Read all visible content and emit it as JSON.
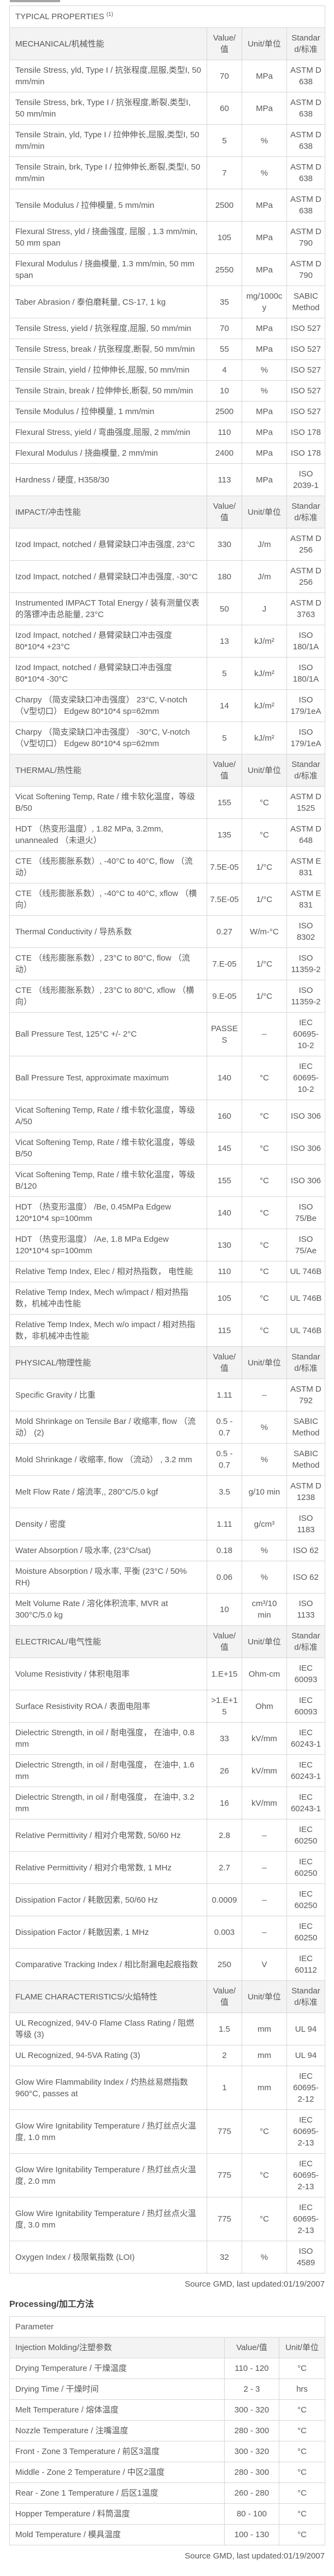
{
  "source_note": "Source GMD, last updated:01/19/2007",
  "typical": {
    "title": "TYPICAL PROPERTIES",
    "title_sup": "(1)",
    "columns": {
      "value": "Value/值",
      "unit": "Unit/单位",
      "standard": "Standard/标准"
    },
    "sections": [
      {
        "name": "MECHANICAL/机械性能",
        "rows": [
          {
            "property": "Tensile Stress, yld, Type I / 抗张程度,屈服,类型I, 50 mm/min",
            "value": "70",
            "unit": "MPa",
            "standard": "ASTM D 638"
          },
          {
            "property": "Tensile Stress, brk, Type I / 抗张程度,断裂,类型I, 50 mm/min",
            "value": "60",
            "unit": "MPa",
            "standard": "ASTM D 638"
          },
          {
            "property": "Tensile Strain, yld, Type I / 拉伸伸长,屈服,类型I, 50 mm/min",
            "value": "5",
            "unit": "%",
            "standard": "ASTM D 638"
          },
          {
            "property": "Tensile Strain, brk, Type I / 拉伸伸长,断裂,类型I, 50 mm/min",
            "value": "7",
            "unit": "%",
            "standard": "ASTM D 638"
          },
          {
            "property": "Tensile Modulus / 拉伸模量, 5 mm/min",
            "value": "2500",
            "unit": "MPa",
            "standard": "ASTM D 638"
          },
          {
            "property": "Flexural Stress, yld / 挠曲强度, 屈服 , 1.3 mm/min, 50 mm span",
            "value": "105",
            "unit": "MPa",
            "standard": "ASTM D 790"
          },
          {
            "property": "Flexural Modulus / 挠曲模量, 1.3 mm/min, 50 mm span",
            "value": "2550",
            "unit": "MPa",
            "standard": "ASTM D 790"
          },
          {
            "property": "Taber Abrasion / 泰伯磨耗量, CS-17, 1 kg",
            "value": "35",
            "unit": "mg/1000cy",
            "standard": "SABIC Method"
          },
          {
            "property": "Tensile Stress, yield / 抗张程度,屈服, 50 mm/min",
            "value": "70",
            "unit": "MPa",
            "standard": "ISO 527"
          },
          {
            "property": "Tensile Stress, break / 抗张程度,断裂, 50 mm/min",
            "value": "55",
            "unit": "MPa",
            "standard": "ISO 527"
          },
          {
            "property": "Tensile Strain, yield / 拉伸伸长,屈服, 50 mm/min",
            "value": "4",
            "unit": "%",
            "standard": "ISO 527"
          },
          {
            "property": "Tensile Strain, break / 拉伸伸长,断裂, 50 mm/min",
            "value": "10",
            "unit": "%",
            "standard": "ISO 527"
          },
          {
            "property": "Tensile Modulus / 拉伸模量, 1 mm/min",
            "value": "2500",
            "unit": "MPa",
            "standard": "ISO 527"
          },
          {
            "property": "Flexural Stress, yield / 弯曲强度,屈服, 2 mm/min",
            "value": "110",
            "unit": "MPa",
            "standard": "ISO 178"
          },
          {
            "property": "Flexural Modulus / 挠曲模量, 2 mm/min",
            "value": "2400",
            "unit": "MPa",
            "standard": "ISO 178"
          },
          {
            "property": "Hardness / 硬度, H358/30",
            "value": "113",
            "unit": "MPa",
            "standard": "ISO 2039-1"
          }
        ]
      },
      {
        "name": "IMPACT/冲击性能",
        "rows": [
          {
            "property": "Izod Impact, notched / 悬臂梁缺口冲击强度, 23°C",
            "value": "330",
            "unit": "J/m",
            "standard": "ASTM D 256"
          },
          {
            "property": "Izod Impact, notched / 悬臂梁缺口冲击强度, -30°C",
            "value": "180",
            "unit": "J/m",
            "standard": "ASTM D 256"
          },
          {
            "property": "Instrumented IMPACT Total Energy / 装有测量仪表的落镖冲击总能量, 23°C",
            "value": "50",
            "unit": "J",
            "standard": "ASTM D 3763"
          },
          {
            "property": "Izod Impact, notched / 悬臂梁缺口冲击强度 80*10*4 +23°C",
            "value": "13",
            "unit": "kJ/m²",
            "standard": "ISO 180/1A"
          },
          {
            "property": "Izod Impact, notched / 悬臂梁缺口冲击强度 80*10*4 -30°C",
            "value": "5",
            "unit": "kJ/m²",
            "standard": "ISO 180/1A"
          },
          {
            "property": "Charpy （简支梁缺口冲击强度） 23°C, V-notch （V型切口） Edgew 80*10*4 sp=62mm",
            "value": "14",
            "unit": "kJ/m²",
            "standard": "ISO 179/1eA"
          },
          {
            "property": "Charpy （简支梁缺口冲击强度） -30°C, V-notch （V型切口） Edgew 80*10*4 sp=62mm",
            "value": "5",
            "unit": "kJ/m²",
            "standard": "ISO 179/1eA"
          }
        ]
      },
      {
        "name": "THERMAL/热性能",
        "rows": [
          {
            "property": "Vicat Softening Temp, Rate / 维卡软化温度，等级 B/50",
            "value": "155",
            "unit": "°C",
            "standard": "ASTM D 1525"
          },
          {
            "property": "HDT （热变形温度）, 1.82 MPa, 3.2mm, unannealed （未退火）",
            "value": "135",
            "unit": "°C",
            "standard": "ASTM D 648"
          },
          {
            "property": "CTE （线形膨胀系数）, -40°C to 40°C, flow （流动）",
            "value": "7.5E-05",
            "unit": "1/°C",
            "standard": "ASTM E 831"
          },
          {
            "property": "CTE （线形膨胀系数）, -40°C to 40°C, xflow （横向）",
            "value": "7.5E-05",
            "unit": "1/°C",
            "standard": "ASTM E 831"
          },
          {
            "property": "Thermal Conductivity / 导热系数",
            "value": "0.27",
            "unit": "W/m-°C",
            "standard": "ISO 8302"
          },
          {
            "property": "CTE （线形膨胀系数）, 23°C to 80°C, flow （流动）",
            "value": "7.E-05",
            "unit": "1/°C",
            "standard": "ISO 11359-2"
          },
          {
            "property": "CTE （线形膨胀系数）, 23°C to 80°C, xflow （横向）",
            "value": "9.E-05",
            "unit": "1/°C",
            "standard": "ISO 11359-2"
          },
          {
            "property": "Ball Pressure Test, 125°C +/- 2°C",
            "value": "PASSES",
            "unit": "–",
            "standard": "IEC 60695-10-2"
          },
          {
            "property": "Ball Pressure Test, approximate maximum",
            "value": "140",
            "unit": "°C",
            "standard": "IEC 60695-10-2"
          },
          {
            "property": "Vicat Softening Temp, Rate / 维卡软化温度，等级 A/50",
            "value": "160",
            "unit": "°C",
            "standard": "ISO 306"
          },
          {
            "property": "Vicat Softening Temp, Rate / 维卡软化温度，等级 B/50",
            "value": "145",
            "unit": "°C",
            "standard": "ISO 306"
          },
          {
            "property": "Vicat Softening Temp, Rate / 维卡软化温度，等级 B/120",
            "value": "155",
            "unit": "°C",
            "standard": "ISO 306"
          },
          {
            "property": "HDT （热变形温度） /Be, 0.45MPa Edgew 120*10*4 sp=100mm",
            "value": "140",
            "unit": "°C",
            "standard": "ISO 75/Be"
          },
          {
            "property": "HDT （热变形温度） /Ae, 1.8 MPa Edgew 120*10*4 sp=100mm",
            "value": "130",
            "unit": "°C",
            "standard": "ISO 75/Ae"
          },
          {
            "property": "Relative Temp Index, Elec / 相对热指数， 电性能",
            "value": "110",
            "unit": "°C",
            "standard": "UL 746B"
          },
          {
            "property": "Relative Temp Index, Mech w/impact / 相对热指数，机械冲击性能",
            "value": "105",
            "unit": "°C",
            "standard": "UL 746B"
          },
          {
            "property": "Relative Temp Index, Mech w/o impact / 相对热指数，非机械冲击性能",
            "value": "115",
            "unit": "°C",
            "standard": "UL 746B"
          }
        ]
      },
      {
        "name": "PHYSICAL/物理性能",
        "rows": [
          {
            "property": "Specific Gravity / 比重",
            "value": "1.11",
            "unit": "–",
            "standard": "ASTM D 792"
          },
          {
            "property": "Mold Shrinkage on Tensile Bar / 收缩率, flow （流动） (2)",
            "value": "0.5 - 0.7",
            "unit": "%",
            "standard": "SABIC Method"
          },
          {
            "property": "Mold Shrinkage / 收缩率, flow （流动） , 3.2 mm",
            "value": "0.5 - 0.7",
            "unit": "%",
            "standard": "SABIC Method"
          },
          {
            "property": "Melt Flow Rate / 熔流率,, 280°C/5.0 kgf",
            "value": "3.5",
            "unit": "g/10 min",
            "standard": "ASTM D 1238"
          },
          {
            "property": "Density / 密度",
            "value": "1.11",
            "unit": "g/cm³",
            "standard": "ISO 1183"
          },
          {
            "property": "Water Absorption / 吸水率, (23°C/sat)",
            "value": "0.18",
            "unit": "%",
            "standard": "ISO 62"
          },
          {
            "property": "Moisture Absorption / 吸水率, 平衡 (23°C / 50% RH)",
            "value": "0.06",
            "unit": "%",
            "standard": "ISO 62"
          },
          {
            "property": "Melt Volume Rate / 溶化体积流率, MVR at 300°C/5.0 kg",
            "value": "10",
            "unit": "cm³/10 min",
            "standard": "ISO 1133"
          }
        ]
      },
      {
        "name": "ELECTRICAL/电气性能",
        "rows": [
          {
            "property": "Volume Resistivity / 体积电阻率",
            "value": "1.E+15",
            "unit": "Ohm-cm",
            "standard": "IEC 60093"
          },
          {
            "property": "Surface Resistivity ROA / 表面电阻率",
            "value": ">1.E+15",
            "unit": "Ohm",
            "standard": "IEC 60093"
          },
          {
            "property": "Dielectric Strength, in oil / 耐电强度， 在油中, 0.8 mm",
            "value": "33",
            "unit": "kV/mm",
            "standard": "IEC 60243-1"
          },
          {
            "property": "Dielectric Strength, in oil / 耐电强度， 在油中, 1.6 mm",
            "value": "26",
            "unit": "kV/mm",
            "standard": "IEC 60243-1"
          },
          {
            "property": "Dielectric Strength, in oil / 耐电强度， 在油中, 3.2 mm",
            "value": "16",
            "unit": "kV/mm",
            "standard": "IEC 60243-1"
          },
          {
            "property": "Relative Permittivity / 相对介电常数, 50/60 Hz",
            "value": "2.8",
            "unit": "–",
            "standard": "IEC 60250"
          },
          {
            "property": "Relative Permittivity / 相对介电常数, 1 MHz",
            "value": "2.7",
            "unit": "–",
            "standard": "IEC 60250"
          },
          {
            "property": "Dissipation Factor / 耗散因素, 50/60 Hz",
            "value": "0.0009",
            "unit": "–",
            "standard": "IEC 60250"
          },
          {
            "property": "Dissipation Factor / 耗散因素, 1 MHz",
            "value": "0.003",
            "unit": "–",
            "standard": "IEC 60250"
          },
          {
            "property": "Comparative Tracking Index / 相比耐漏电起痕指数",
            "value": "250",
            "unit": "V",
            "standard": "IEC 60112"
          }
        ]
      },
      {
        "name": "FLAME CHARACTERISTICS/火焰特性",
        "rows": [
          {
            "property": "UL Recognized, 94V-0 Flame Class Rating / 阻燃等级 (3)",
            "value": "1.5",
            "unit": "mm",
            "standard": "UL 94"
          },
          {
            "property": "UL Recognized, 94-5VA Rating (3)",
            "value": "2",
            "unit": "mm",
            "standard": "UL 94"
          },
          {
            "property": "Glow Wire Flammability Index / 灼热丝易燃指数 960°C, passes at",
            "value": "1",
            "unit": "mm",
            "standard": "IEC 60695-2-12"
          },
          {
            "property": "Glow Wire Ignitability Temperature / 热灯丝点火温度, 1.0 mm",
            "value": "775",
            "unit": "°C",
            "standard": "IEC 60695-2-13"
          },
          {
            "property": "Glow Wire Ignitability Temperature / 热灯丝点火温度, 2.0 mm",
            "value": "775",
            "unit": "°C",
            "standard": "IEC 60695-2-13"
          },
          {
            "property": "Glow Wire Ignitability Temperature / 热灯丝点火温度, 3.0 mm",
            "value": "775",
            "unit": "°C",
            "standard": "IEC 60695-2-13"
          },
          {
            "property": "Oxygen Index / 极限氧指数 (LOI)",
            "value": "32",
            "unit": "%",
            "standard": "ISO 4589"
          }
        ]
      }
    ]
  },
  "processing": {
    "heading": "Processing/加工方法",
    "parameter_header": "Parameter",
    "subheader": {
      "name": "Injection Molding/注塑参数",
      "value": "Value/值",
      "unit": "Unit/单位"
    },
    "rows": [
      {
        "property": "Drying Temperature / 干燥温度",
        "value": "110 - 120",
        "unit": "°C"
      },
      {
        "property": "Drying Time / 干燥时间",
        "value": "2 - 3",
        "unit": "hrs"
      },
      {
        "property": "Melt Temperature / 熔体温度",
        "value": "300 - 320",
        "unit": "°C"
      },
      {
        "property": "Nozzle Temperature / 注嘴温度",
        "value": "280 - 300",
        "unit": "°C"
      },
      {
        "property": "Front - Zone 3 Temperature / 前区3温度",
        "value": "300 - 320",
        "unit": "°C"
      },
      {
        "property": "Middle - Zone 2 Temperature / 中区2温度",
        "value": "280 - 300",
        "unit": "°C"
      },
      {
        "property": "Rear - Zone 1 Temperature / 后区1温度",
        "value": "260 - 280",
        "unit": "°C"
      },
      {
        "property": "Hopper Temperature / 料筒温度",
        "value": "80 - 100",
        "unit": "°C"
      },
      {
        "property": "Mold Temperature / 模具温度",
        "value": "100 - 130",
        "unit": "°C"
      }
    ]
  }
}
